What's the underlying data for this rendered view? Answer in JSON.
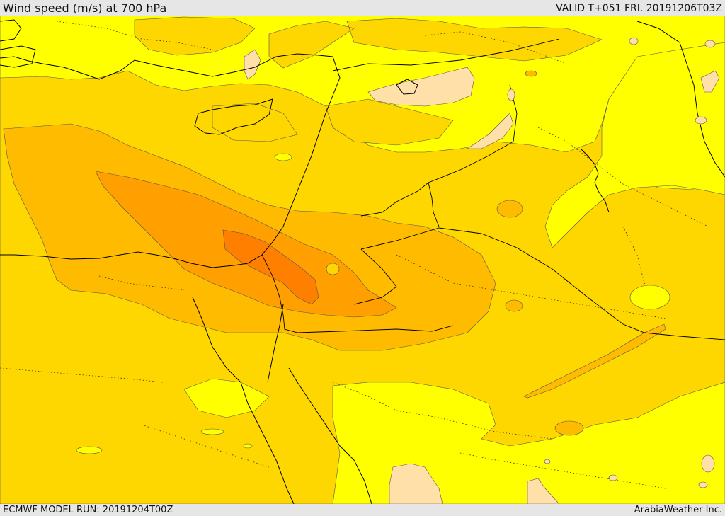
{
  "header": {
    "title": "Wind speed (m/s) at 700 hPa",
    "valid_time": "VALID T+051 FRI. 20191206T03Z"
  },
  "footer": {
    "model_run": "ECMWF MODEL RUN: 20191204T00Z",
    "credit": "ArabiaWeather Inc."
  },
  "colors": {
    "band_lowest": "#ffffff",
    "band_light": "#ffe0a8",
    "band_yellow": "#ffff00",
    "band_gold": "#ffd700",
    "band_amber": "#ffbb00",
    "band_orange": "#ff9f00",
    "band_dark_orange": "#ff7f00",
    "coastline": "#000000",
    "border": "#000000",
    "contour": "#555555"
  }
}
